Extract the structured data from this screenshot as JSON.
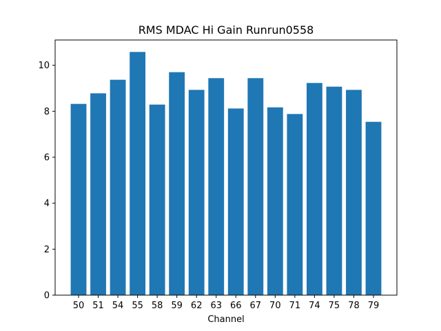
{
  "chart_data": {
    "type": "bar",
    "title": "RMS MDAC Hi Gain Runrun0558",
    "xlabel": "Channel",
    "ylabel": "",
    "categories": [
      "50",
      "51",
      "54",
      "55",
      "58",
      "59",
      "62",
      "63",
      "66",
      "67",
      "70",
      "71",
      "74",
      "75",
      "78",
      "79"
    ],
    "values": [
      8.32,
      8.78,
      9.37,
      10.58,
      8.29,
      9.7,
      8.93,
      9.44,
      8.12,
      9.44,
      8.17,
      7.88,
      9.23,
      9.07,
      8.93,
      7.54
    ],
    "ylim": [
      0,
      11.1
    ],
    "yticks": [
      "0",
      "2",
      "4",
      "6",
      "8",
      "10"
    ],
    "bar_color": "#1f77b4",
    "grid": false,
    "legend": "none"
  }
}
